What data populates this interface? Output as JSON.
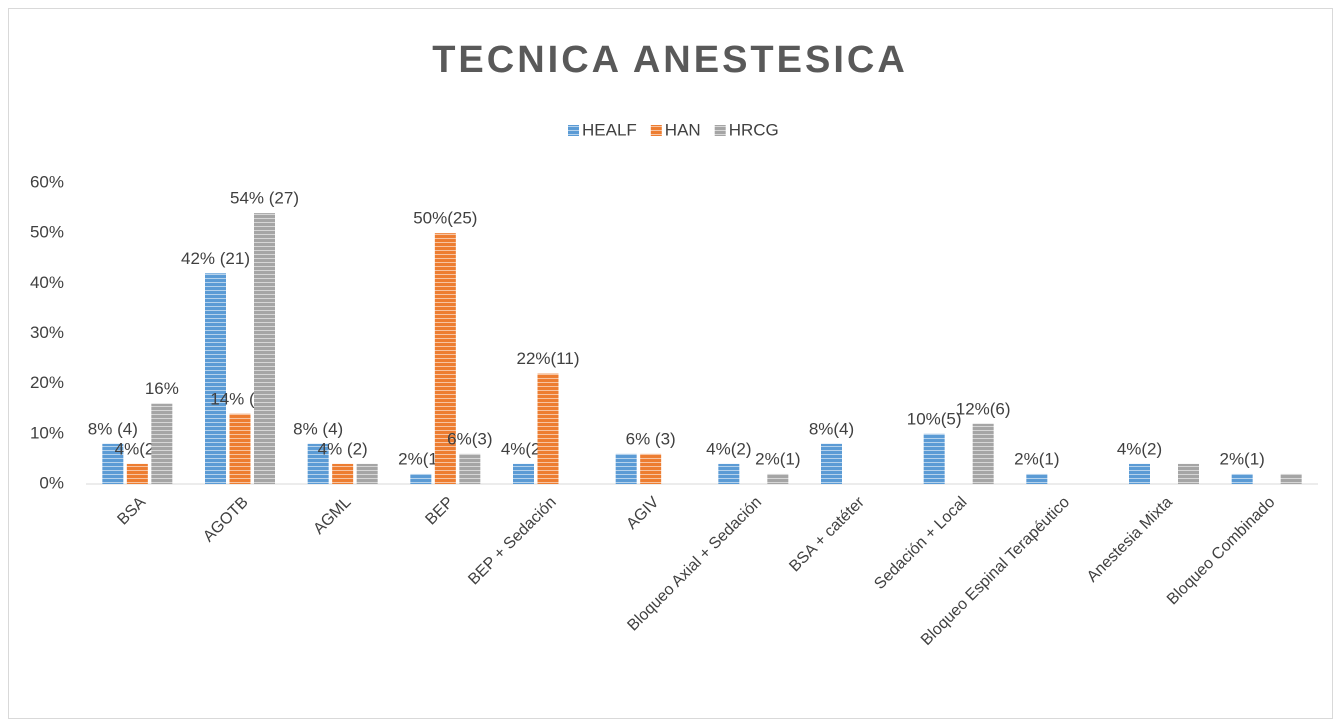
{
  "chart_data": {
    "type": "bar",
    "title": "TECNICA ANESTESICA",
    "categories": [
      "BSA",
      "AGOTB",
      "AGML",
      "BEP",
      "BEP + Sedación",
      "AGIV",
      "Bloqueo Axial + Sedación",
      "BSA + catéter",
      "Sedación + Local",
      "Bloqueo Espinal Terapéutico",
      "Anestesia Mixta",
      "Bloqueo Combinado"
    ],
    "series": [
      {
        "name": "HEALF",
        "color": "#5b9bd5",
        "values": [
          8,
          42,
          8,
          2,
          4,
          6,
          4,
          8,
          10,
          2,
          4,
          2
        ],
        "value_labels": [
          "8% (4)",
          "42% (21)",
          "8% (4)",
          "2%(1)",
          "4%(2)",
          null,
          "4%(2)",
          "8%(4)",
          "10%(5)",
          "2%(1)",
          "4%(2)",
          "2%(1)"
        ]
      },
      {
        "name": "HAN",
        "color": "#ed7d31",
        "values": [
          4,
          14,
          4,
          50,
          22,
          6,
          null,
          null,
          null,
          null,
          null,
          null
        ],
        "value_labels": [
          "4%(2)",
          "14% (7)",
          "4% (2)",
          "50%(25)",
          "22%(11)",
          "6% (3)",
          null,
          null,
          null,
          null,
          null,
          null
        ]
      },
      {
        "name": "HRCG",
        "color": "#a5a5a5",
        "values": [
          16,
          54,
          4,
          6,
          null,
          null,
          2,
          null,
          12,
          null,
          4,
          2
        ],
        "value_labels": [
          "16%",
          "54% (27)",
          null,
          "6%(3)",
          null,
          null,
          "2%(1)",
          null,
          "12%(6)",
          null,
          null,
          null
        ]
      }
    ],
    "ylim": [
      0,
      60
    ],
    "yticks": [
      {
        "value": 0,
        "label": "0%"
      },
      {
        "value": 10,
        "label": "10%"
      },
      {
        "value": 20,
        "label": "20%"
      },
      {
        "value": 30,
        "label": "30%"
      },
      {
        "value": 40,
        "label": "40%"
      },
      {
        "value": 50,
        "label": "50%"
      },
      {
        "value": 60,
        "label": "60%"
      }
    ],
    "grid": false,
    "legend": "top"
  }
}
